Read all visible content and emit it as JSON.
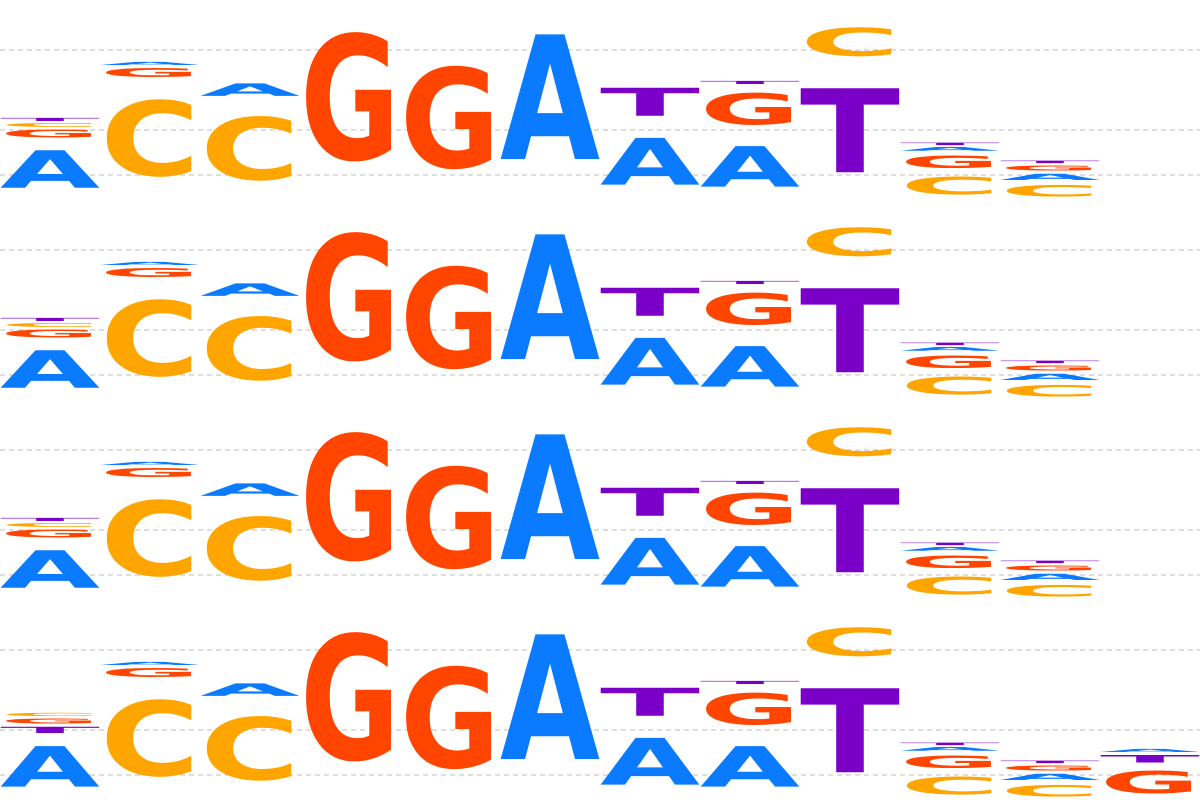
{
  "alphabet": [
    "A",
    "C",
    "G",
    "T"
  ],
  "colors": {
    "A": "#0a7aff",
    "C": "#ffa500",
    "G": "#ff4500",
    "T": "#7a00c8"
  },
  "y_max_bits": 2,
  "gridlines_bits": [
    0.25,
    0.7,
    1.5
  ],
  "logos": [
    {
      "positions": [
        [
          [
            "A",
            0.6
          ],
          [
            "G",
            0.12
          ],
          [
            "C",
            0.06
          ],
          [
            "T",
            0.05
          ]
        ],
        [
          [
            "C",
            1.2
          ],
          [
            "G",
            0.14
          ],
          [
            "A",
            0.05
          ]
        ],
        [
          [
            "C",
            1.0
          ],
          [
            "A",
            0.2
          ]
        ],
        [
          [
            "G",
            2.0
          ]
        ],
        [
          [
            "G",
            1.6
          ]
        ],
        [
          [
            "A",
            2.0
          ]
        ],
        [
          [
            "A",
            0.75
          ],
          [
            "T",
            0.45
          ]
        ],
        [
          [
            "A",
            0.65
          ],
          [
            "G",
            0.5
          ],
          [
            "T",
            0.05
          ]
        ],
        [
          [
            "T",
            1.35
          ],
          [
            "C",
            0.45
          ]
        ],
        [
          [
            "C",
            0.28
          ],
          [
            "G",
            0.2
          ],
          [
            "A",
            0.06
          ],
          [
            "T",
            0.04
          ]
        ],
        [
          [
            "C",
            0.18
          ],
          [
            "A",
            0.1
          ],
          [
            "G",
            0.08
          ],
          [
            "T",
            0.04
          ]
        ]
      ]
    },
    {
      "positions": [
        [
          [
            "A",
            0.6
          ],
          [
            "G",
            0.12
          ],
          [
            "C",
            0.06
          ],
          [
            "T",
            0.05
          ]
        ],
        [
          [
            "C",
            1.2
          ],
          [
            "G",
            0.14
          ],
          [
            "A",
            0.05
          ]
        ],
        [
          [
            "C",
            1.0
          ],
          [
            "A",
            0.2
          ]
        ],
        [
          [
            "G",
            2.0
          ]
        ],
        [
          [
            "G",
            1.6
          ]
        ],
        [
          [
            "A",
            2.0
          ]
        ],
        [
          [
            "A",
            0.75
          ],
          [
            "T",
            0.45
          ]
        ],
        [
          [
            "A",
            0.65
          ],
          [
            "G",
            0.5
          ],
          [
            "T",
            0.05
          ]
        ],
        [
          [
            "T",
            1.35
          ],
          [
            "C",
            0.45
          ]
        ],
        [
          [
            "C",
            0.28
          ],
          [
            "G",
            0.2
          ],
          [
            "A",
            0.06
          ],
          [
            "T",
            0.04
          ]
        ],
        [
          [
            "C",
            0.18
          ],
          [
            "A",
            0.1
          ],
          [
            "G",
            0.08
          ],
          [
            "T",
            0.04
          ]
        ]
      ]
    },
    {
      "positions": [
        [
          [
            "A",
            0.6
          ],
          [
            "G",
            0.12
          ],
          [
            "C",
            0.06
          ],
          [
            "T",
            0.05
          ]
        ],
        [
          [
            "C",
            1.2
          ],
          [
            "G",
            0.14
          ],
          [
            "A",
            0.05
          ]
        ],
        [
          [
            "C",
            1.0
          ],
          [
            "A",
            0.2
          ]
        ],
        [
          [
            "G",
            2.0
          ]
        ],
        [
          [
            "G",
            1.6
          ]
        ],
        [
          [
            "A",
            2.0
          ]
        ],
        [
          [
            "A",
            0.75
          ],
          [
            "T",
            0.45
          ]
        ],
        [
          [
            "A",
            0.65
          ],
          [
            "G",
            0.5
          ],
          [
            "T",
            0.05
          ]
        ],
        [
          [
            "T",
            1.35
          ],
          [
            "C",
            0.45
          ]
        ],
        [
          [
            "C",
            0.28
          ],
          [
            "G",
            0.2
          ],
          [
            "A",
            0.06
          ],
          [
            "T",
            0.04
          ]
        ],
        [
          [
            "C",
            0.18
          ],
          [
            "A",
            0.1
          ],
          [
            "G",
            0.08
          ],
          [
            "T",
            0.04
          ]
        ]
      ]
    },
    {
      "positions": [
        [
          [
            "A",
            0.65
          ],
          [
            "T",
            0.1
          ],
          [
            "G",
            0.08
          ],
          [
            "C",
            0.05
          ]
        ],
        [
          [
            "C",
            1.2
          ],
          [
            "G",
            0.14
          ],
          [
            "A",
            0.05
          ]
        ],
        [
          [
            "C",
            1.0
          ],
          [
            "A",
            0.2
          ]
        ],
        [
          [
            "G",
            2.0
          ]
        ],
        [
          [
            "G",
            1.6
          ]
        ],
        [
          [
            "A",
            2.0
          ]
        ],
        [
          [
            "A",
            0.75
          ],
          [
            "T",
            0.45
          ]
        ],
        [
          [
            "A",
            0.65
          ],
          [
            "G",
            0.5
          ],
          [
            "T",
            0.05
          ]
        ],
        [
          [
            "T",
            1.35
          ],
          [
            "C",
            0.45
          ]
        ],
        [
          [
            "C",
            0.28
          ],
          [
            "G",
            0.2
          ],
          [
            "A",
            0.06
          ],
          [
            "T",
            0.04
          ]
        ],
        [
          [
            "C",
            0.18
          ],
          [
            "A",
            0.1
          ],
          [
            "G",
            0.08
          ],
          [
            "T",
            0.04
          ]
        ],
        [
          [
            "G",
            0.35
          ],
          [
            "T",
            0.12
          ],
          [
            "A",
            0.05
          ]
        ]
      ]
    }
  ]
}
